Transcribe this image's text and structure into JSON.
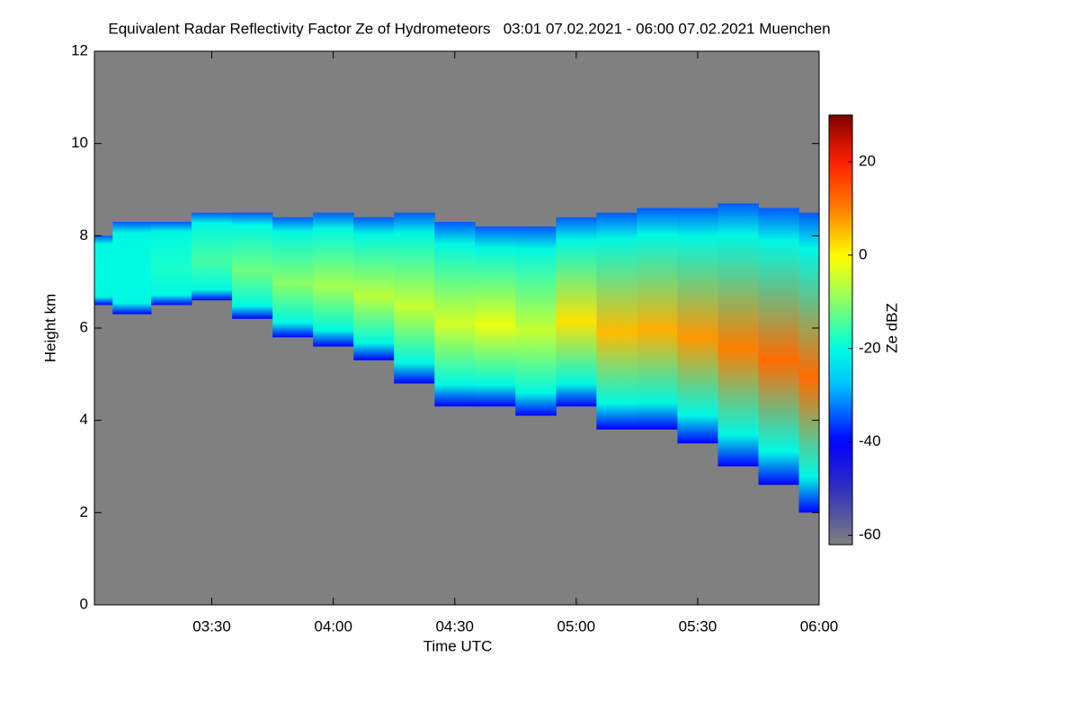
{
  "chart_data": {
    "type": "heatmap",
    "title": "Equivalent Radar Reflectivity Factor Ze of Hydrometeors   03:01 07.02.2021 - 06:00 07.02.2021 Muenchen",
    "x_label": "Time UTC",
    "y_label": "Height km",
    "colorbar_label": "Ze dBZ",
    "x": [
      181,
      190,
      200,
      210,
      220,
      230,
      240,
      250,
      260,
      270,
      280,
      290,
      300,
      310,
      320,
      330,
      340,
      350,
      360
    ],
    "top": [
      8.0,
      8.3,
      8.3,
      8.5,
      8.5,
      8.4,
      8.5,
      8.4,
      8.5,
      8.3,
      8.2,
      8.2,
      8.4,
      8.5,
      8.6,
      8.6,
      8.7,
      8.6,
      8.5
    ],
    "base": [
      6.5,
      6.3,
      6.5,
      6.6,
      6.2,
      5.8,
      5.6,
      5.3,
      4.8,
      4.3,
      4.3,
      4.1,
      4.3,
      3.8,
      3.8,
      3.5,
      3.0,
      2.6,
      2.0
    ],
    "max": [
      -20,
      -20,
      -18,
      -15,
      -12,
      -10,
      -8,
      -6,
      -5,
      -4,
      -2,
      -5,
      2,
      5,
      6,
      8,
      10,
      12,
      12
    ],
    "xlim": [
      181,
      360
    ],
    "xticks": [
      {
        "value": 210,
        "label": "03:30"
      },
      {
        "value": 240,
        "label": "04:00"
      },
      {
        "value": 270,
        "label": "04:30"
      },
      {
        "value": 300,
        "label": "05:00"
      },
      {
        "value": 330,
        "label": "05:30"
      },
      {
        "value": 360,
        "label": "06:00"
      }
    ],
    "ylim": [
      0,
      12
    ],
    "yticks": [
      0,
      2,
      4,
      6,
      8,
      10,
      12
    ],
    "zlim": [
      -62,
      30
    ],
    "zticks": [
      -60,
      -40,
      -20,
      0,
      20
    ],
    "background": "#808080"
  }
}
